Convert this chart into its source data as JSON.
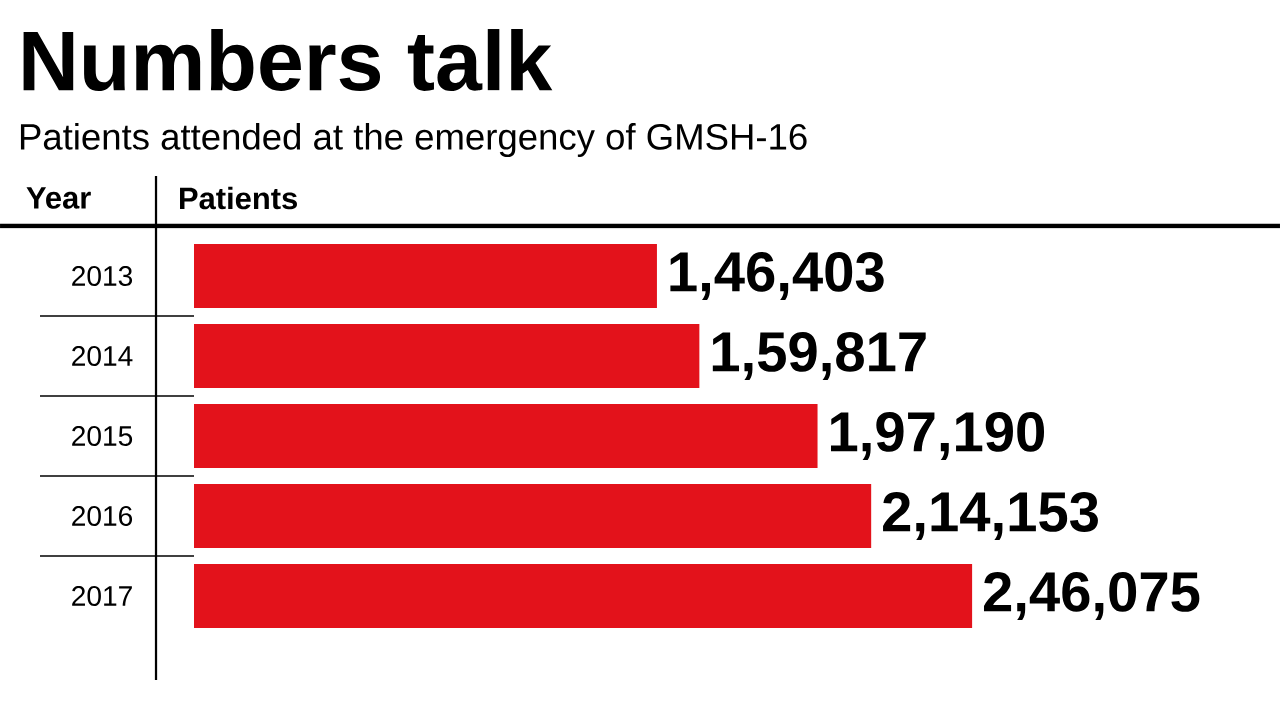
{
  "chart_data": {
    "type": "bar",
    "orientation": "horizontal",
    "title": "Numbers talk",
    "subtitle": "Patients attended at the emergency of GMSH-16",
    "ylabel": "Year",
    "xlabel": "Patients",
    "categories": [
      "2013",
      "2014",
      "2015",
      "2016",
      "2017"
    ],
    "values": [
      146403,
      159817,
      197190,
      214153,
      246075
    ],
    "value_labels": [
      "1,46,403",
      "1,59,817",
      "1,97,190",
      "2,14,153",
      "2,46,075"
    ],
    "color": "#e3121b",
    "tick_labels": "y"
  }
}
